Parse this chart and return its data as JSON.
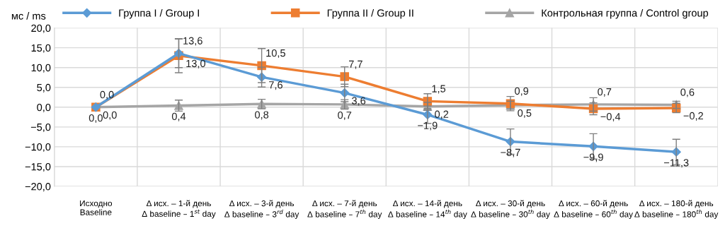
{
  "chart_data": {
    "type": "line",
    "ylabel": "мс / ms",
    "categories": [
      "Исходно\nBaseline",
      "Δ исх. – 1-й день\nΔ baseline – 1$^{st}$ day",
      "Δ исх. – 3-й день\nΔ baseline – 3$^{rd}$ day",
      "Δ исх. – 7-й день\nΔ baseline – 7$^{th}$ day",
      "Δ исх. – 14-й день\nΔ baseline – 14$^{th}$ day",
      "Δ исх. – 30-й день\nΔ baseline – 30$^{th}$ day",
      "Δ исх. – 60-й день\nΔ baseline – 60$^{th}$ day",
      "Δ исх. – 180-й день\nΔ baseline – 180$^{th}$ day"
    ],
    "series": [
      {
        "name": "Группа I / Group I",
        "color": "#5b9bd5",
        "marker": "diamond",
        "values": [
          0.0,
          13.6,
          7.6,
          3.6,
          -1.9,
          -8.7,
          -9.9,
          -11.3
        ],
        "errors": [
          null,
          3.6,
          2.5,
          2.2,
          2.2,
          3.2,
          3.2,
          3.2
        ],
        "value_labels": [
          "0,0",
          "13,6",
          "7,6",
          "3,6",
          "−1,9",
          "−8,7",
          "−9,9",
          "−11,3"
        ]
      },
      {
        "name": "Группа II / Group II",
        "color": "#ed7d31",
        "marker": "square",
        "values": [
          0.0,
          13.0,
          10.5,
          7.7,
          1.5,
          0.9,
          -0.4,
          -0.2
        ],
        "errors": [
          null,
          4.3,
          4.3,
          2.5,
          1.9,
          1.8,
          1.5,
          1.2
        ],
        "value_labels": [
          "0,0",
          "13,0",
          "10,5",
          "7,7",
          "1,5",
          "0,9",
          "−0,4",
          "−0,2"
        ]
      },
      {
        "name": "Контрольная группа / Control group",
        "color": "#a5a5a5",
        "marker": "triangle",
        "values": [
          0.0,
          0.4,
          0.8,
          0.7,
          0.2,
          0.5,
          0.7,
          0.6
        ],
        "errors": [
          null,
          1.4,
          1.2,
          1.2,
          1.0,
          1.0,
          1.7,
          0.9
        ],
        "value_labels": [
          "0,0",
          "0,4",
          "0,8",
          "0,7",
          "0,2",
          "0,5",
          "0,7",
          "0,6"
        ]
      }
    ],
    "ylim": [
      -20,
      20
    ],
    "yticks": [
      {
        "value": -20,
        "label": "−20,0"
      },
      {
        "value": -15,
        "label": "−15,0"
      },
      {
        "value": -10,
        "label": "−10,0"
      },
      {
        "value": -5,
        "label": "−5,0"
      },
      {
        "value": 0,
        "label": "0,0"
      },
      {
        "value": 5,
        "label": "5,0"
      },
      {
        "value": 10,
        "label": "10,0"
      },
      {
        "value": 15,
        "label": "15,0"
      },
      {
        "value": 20,
        "label": "20,0"
      }
    ],
    "grid": true,
    "legend": "top",
    "line_style": "solid"
  }
}
